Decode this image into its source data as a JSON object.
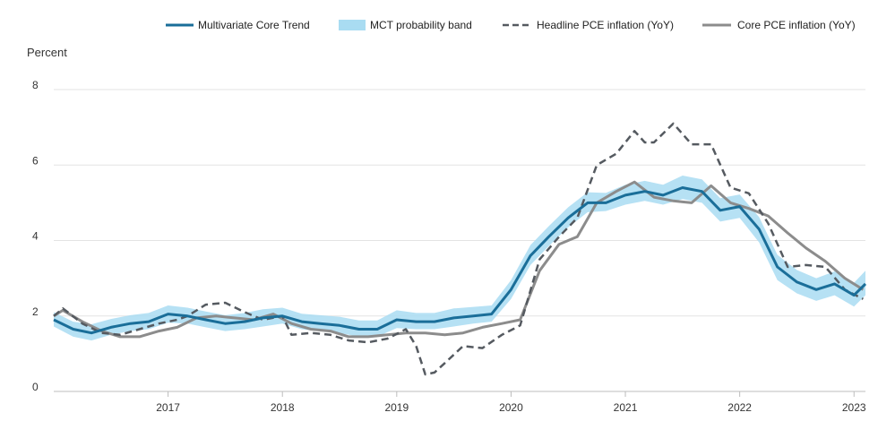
{
  "chart_data": {
    "type": "line",
    "ylabel": "Percent",
    "ylim": [
      0,
      8
    ],
    "yticks": [
      0,
      2,
      4,
      6,
      8
    ],
    "xlim": [
      2016.0,
      2023.1
    ],
    "xticks": [
      "2017",
      "2018",
      "2019",
      "2020",
      "2021",
      "2022",
      "2023"
    ],
    "grid": "horizontal",
    "legend_position": "top",
    "legend": [
      {
        "key": "mct",
        "label": "Multivariate Core Trend",
        "style": "line",
        "color": "#1a6e99"
      },
      {
        "key": "band",
        "label": "MCT probability band",
        "style": "band",
        "color": "#a9dcf2"
      },
      {
        "key": "headline",
        "label": "Headline PCE inflation (YoY)",
        "style": "dashed",
        "color": "#555a60"
      },
      {
        "key": "core",
        "label": "Core PCE inflation (YoY)",
        "style": "line",
        "color": "#8c8c8c"
      }
    ],
    "series": [
      {
        "key": "mct",
        "name": "Multivariate Core Trend",
        "x": [
          2016.0,
          2016.17,
          2016.33,
          2016.5,
          2016.67,
          2016.83,
          2017.0,
          2017.17,
          2017.33,
          2017.5,
          2017.67,
          2017.83,
          2018.0,
          2018.17,
          2018.33,
          2018.5,
          2018.67,
          2018.83,
          2019.0,
          2019.17,
          2019.33,
          2019.5,
          2019.67,
          2019.83,
          2020.0,
          2020.17,
          2020.33,
          2020.5,
          2020.67,
          2020.83,
          2021.0,
          2021.17,
          2021.33,
          2021.5,
          2021.67,
          2021.83,
          2022.0,
          2022.17,
          2022.33,
          2022.5,
          2022.67,
          2022.83,
          2023.0,
          2023.1
        ],
        "y": [
          1.9,
          1.65,
          1.55,
          1.7,
          1.8,
          1.85,
          2.05,
          2.0,
          1.9,
          1.8,
          1.85,
          1.95,
          2.0,
          1.85,
          1.8,
          1.75,
          1.65,
          1.65,
          1.9,
          1.85,
          1.85,
          1.95,
          2.0,
          2.05,
          2.7,
          3.6,
          4.1,
          4.6,
          5.0,
          5.0,
          5.2,
          5.3,
          5.2,
          5.4,
          5.3,
          4.8,
          4.9,
          4.3,
          3.3,
          2.9,
          2.7,
          2.85,
          2.55,
          2.85
        ]
      },
      {
        "key": "band",
        "name": "MCT probability band",
        "x": [
          2016.0,
          2016.17,
          2016.33,
          2016.5,
          2016.67,
          2016.83,
          2017.0,
          2017.17,
          2017.33,
          2017.5,
          2017.67,
          2017.83,
          2018.0,
          2018.17,
          2018.33,
          2018.5,
          2018.67,
          2018.83,
          2019.0,
          2019.17,
          2019.33,
          2019.5,
          2019.67,
          2019.83,
          2020.0,
          2020.17,
          2020.33,
          2020.5,
          2020.67,
          2020.83,
          2021.0,
          2021.17,
          2021.33,
          2021.5,
          2021.67,
          2021.83,
          2022.0,
          2022.17,
          2022.33,
          2022.5,
          2022.67,
          2022.83,
          2023.0,
          2023.1
        ],
        "low": [
          1.72,
          1.45,
          1.35,
          1.5,
          1.6,
          1.65,
          1.82,
          1.8,
          1.7,
          1.6,
          1.65,
          1.72,
          1.8,
          1.65,
          1.6,
          1.55,
          1.45,
          1.45,
          1.68,
          1.65,
          1.65,
          1.72,
          1.8,
          1.85,
          2.45,
          3.35,
          3.85,
          4.35,
          4.75,
          4.78,
          4.95,
          5.05,
          4.95,
          5.1,
          5.0,
          4.5,
          4.6,
          3.95,
          2.95,
          2.6,
          2.4,
          2.55,
          2.25,
          2.55
        ],
        "high": [
          2.1,
          1.85,
          1.78,
          1.92,
          2.02,
          2.08,
          2.28,
          2.22,
          2.12,
          2.02,
          2.08,
          2.18,
          2.22,
          2.06,
          2.02,
          1.98,
          1.88,
          1.88,
          2.15,
          2.08,
          2.08,
          2.2,
          2.24,
          2.28,
          2.95,
          3.88,
          4.38,
          4.88,
          5.28,
          5.26,
          5.48,
          5.58,
          5.48,
          5.72,
          5.62,
          5.12,
          5.22,
          4.62,
          3.62,
          3.22,
          3.0,
          3.18,
          2.88,
          3.2
        ]
      },
      {
        "key": "headline",
        "name": "Headline PCE inflation (YoY)",
        "x": [
          2016.0,
          2016.08,
          2016.25,
          2016.42,
          2016.58,
          2016.75,
          2016.92,
          2017.08,
          2017.17,
          2017.33,
          2017.5,
          2017.67,
          2017.83,
          2018.0,
          2018.08,
          2018.25,
          2018.42,
          2018.58,
          2018.75,
          2018.92,
          2019.08,
          2019.17,
          2019.25,
          2019.33,
          2019.42,
          2019.58,
          2019.75,
          2019.92,
          2020.08,
          2020.25,
          2020.42,
          2020.58,
          2020.75,
          2020.92,
          2021.08,
          2021.17,
          2021.25,
          2021.42,
          2021.58,
          2021.75,
          2021.92,
          2022.08,
          2022.25,
          2022.42,
          2022.58,
          2022.75,
          2022.92,
          2023.08
        ],
        "y": [
          2.0,
          2.2,
          1.8,
          1.55,
          1.5,
          1.65,
          1.8,
          1.9,
          2.0,
          2.3,
          2.35,
          2.1,
          1.9,
          2.0,
          1.5,
          1.55,
          1.5,
          1.35,
          1.3,
          1.4,
          1.65,
          1.2,
          0.45,
          0.5,
          0.75,
          1.2,
          1.15,
          1.5,
          1.75,
          3.5,
          4.1,
          4.6,
          6.0,
          6.3,
          6.9,
          6.6,
          6.6,
          7.1,
          6.55,
          6.55,
          5.4,
          5.25,
          4.45,
          3.3,
          3.35,
          3.3,
          2.7,
          2.45
        ]
      },
      {
        "key": "core",
        "name": "Core PCE inflation (YoY)",
        "x": [
          2016.0,
          2016.08,
          2016.25,
          2016.42,
          2016.58,
          2016.75,
          2016.92,
          2017.08,
          2017.25,
          2017.42,
          2017.58,
          2017.75,
          2017.92,
          2018.08,
          2018.25,
          2018.42,
          2018.58,
          2018.75,
          2018.92,
          2019.08,
          2019.25,
          2019.42,
          2019.58,
          2019.75,
          2019.92,
          2020.08,
          2020.25,
          2020.42,
          2020.58,
          2020.75,
          2020.92,
          2021.08,
          2021.25,
          2021.42,
          2021.58,
          2021.75,
          2021.92,
          2022.08,
          2022.25,
          2022.42,
          2022.58,
          2022.75,
          2022.92,
          2023.08
        ],
        "y": [
          2.0,
          2.15,
          1.85,
          1.6,
          1.45,
          1.45,
          1.6,
          1.7,
          1.95,
          2.0,
          1.95,
          1.9,
          2.05,
          1.8,
          1.65,
          1.6,
          1.45,
          1.45,
          1.5,
          1.55,
          1.55,
          1.5,
          1.55,
          1.7,
          1.8,
          1.9,
          3.2,
          3.9,
          4.1,
          5.0,
          5.3,
          5.55,
          5.15,
          5.05,
          5.0,
          5.45,
          5.0,
          4.85,
          4.65,
          4.2,
          3.8,
          3.45,
          3.0,
          2.7
        ]
      }
    ]
  }
}
